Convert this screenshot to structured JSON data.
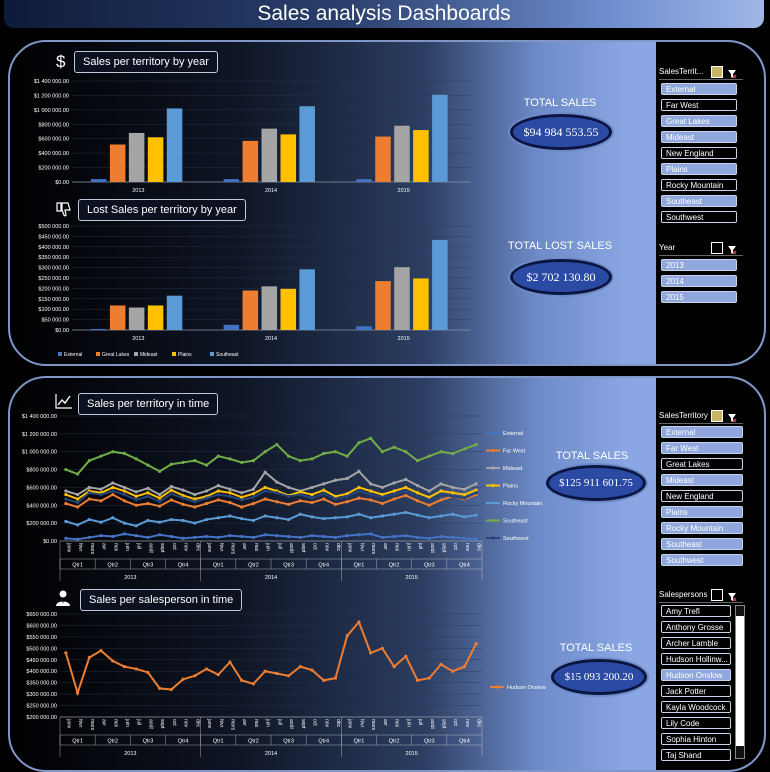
{
  "page_title": "Sales analysis Dashboards",
  "colors": {
    "External": "#4472c4",
    "Far West": "#ed7d31",
    "Great Lakes": "#ed7d31",
    "Mideast": "#a5a5a5",
    "Plains": "#ffc000",
    "Rocky Mountain": "#5b9bd5",
    "Southeast": "#5b9bd5",
    "Southeast_line": "#70ad47",
    "Southwest": "#264478",
    "Hudson Onslow": "#ed7d31"
  },
  "icons": {
    "dollar": "dollar-icon",
    "thumbs_down": "thumbs-down-icon",
    "line_chart": "line-chart-icon",
    "person": "person-icon"
  },
  "charts": {
    "sales_by_year_title": "Sales per territory by year",
    "lost_by_year_title": "Lost Sales per territory by year",
    "sales_in_time_title": "Sales per territory in time",
    "salesperson_in_time_title": "Sales per salesperson in time"
  },
  "kpis": {
    "total_sales_label": "TOTAL SALES",
    "total_sales_value": "$94 984 553.55",
    "total_lost_label": "TOTAL LOST SALES",
    "total_lost_value": "$2 702 130.80",
    "total_sales2_label": "TOTAL SALES",
    "total_sales2_value": "$125 911 601.75",
    "total_sales3_label": "TOTAL SALES",
    "total_sales3_value": "$15 093 200.20"
  },
  "slicers": {
    "territory1": {
      "title": "SalesTerrit...",
      "items": [
        {
          "label": "External",
          "selected": true
        },
        {
          "label": "Far West",
          "selected": false
        },
        {
          "label": "Great Lakes",
          "selected": true
        },
        {
          "label": "Mideast",
          "selected": true
        },
        {
          "label": "New England",
          "selected": false
        },
        {
          "label": "Plains",
          "selected": true
        },
        {
          "label": "Rocky Mountain",
          "selected": false
        },
        {
          "label": "Southeast",
          "selected": true
        },
        {
          "label": "Southwest",
          "selected": false
        }
      ]
    },
    "year": {
      "title": "Year",
      "items": [
        {
          "label": "2013",
          "selected": true
        },
        {
          "label": "2014",
          "selected": true
        },
        {
          "label": "2015",
          "selected": true
        }
      ]
    },
    "territory2": {
      "title": "SalesTerritory",
      "items": [
        {
          "label": "External",
          "selected": true
        },
        {
          "label": "Far West",
          "selected": true
        },
        {
          "label": "Great Lakes",
          "selected": false
        },
        {
          "label": "Mideast",
          "selected": true
        },
        {
          "label": "New England",
          "selected": false
        },
        {
          "label": "Plains",
          "selected": true
        },
        {
          "label": "Rocky Mountain",
          "selected": true
        },
        {
          "label": "Southeast",
          "selected": true
        },
        {
          "label": "Southwest",
          "selected": true
        }
      ]
    },
    "salespersons": {
      "title": "Salespersons",
      "items": [
        {
          "label": "Amy Trefl",
          "selected": false
        },
        {
          "label": "Anthony Grosse",
          "selected": false
        },
        {
          "label": "Archer Lamble",
          "selected": false
        },
        {
          "label": "Hudson Hollinw...",
          "selected": false
        },
        {
          "label": "Hudson Onslow",
          "selected": true
        },
        {
          "label": "Jack Potter",
          "selected": false
        },
        {
          "label": "Kayla Woodcock",
          "selected": false
        },
        {
          "label": "Lily Code",
          "selected": false
        },
        {
          "label": "Sophia Hinton",
          "selected": false
        },
        {
          "label": "Taj Shand",
          "selected": false
        }
      ]
    }
  },
  "chart_data": [
    {
      "type": "bar",
      "title": "Sales per territory by year",
      "categories": [
        "2013",
        "2014",
        "2015"
      ],
      "ylim": [
        0,
        1400000
      ],
      "yticks": [
        "$0.00",
        "$200 000.00",
        "$400 000.00",
        "$600 000.00",
        "$800 000.00",
        "$1 000 000.00",
        "$1 200 000.00",
        "$1 400 000.00"
      ],
      "series": [
        {
          "name": "External",
          "values": [
            40000,
            40000,
            40000
          ]
        },
        {
          "name": "Great Lakes",
          "values": [
            520000,
            570000,
            630000
          ]
        },
        {
          "name": "Mideast",
          "values": [
            680000,
            740000,
            780000
          ]
        },
        {
          "name": "Plains",
          "values": [
            620000,
            660000,
            720000
          ]
        },
        {
          "name": "Southeast",
          "values": [
            1020000,
            1050000,
            1210000
          ]
        }
      ]
    },
    {
      "type": "bar",
      "title": "Lost Sales per territory by year",
      "categories": [
        "2013",
        "2014",
        "2015"
      ],
      "ylim": [
        0,
        500000
      ],
      "yticks": [
        "$0.00",
        "$50 000.00",
        "$100 000.00",
        "$150 000.00",
        "$200 000.00",
        "$250 000.00",
        "$300 000.00",
        "$350 000.00",
        "$400 000.00",
        "$450 000.00",
        "$500 000.00"
      ],
      "legend": [
        "External",
        "Great Lakes",
        "Mideast",
        "Plains",
        "Southeast"
      ],
      "series": [
        {
          "name": "External",
          "values": [
            5000,
            25000,
            18000
          ]
        },
        {
          "name": "Great Lakes",
          "values": [
            118000,
            190000,
            235000
          ]
        },
        {
          "name": "Mideast",
          "values": [
            108000,
            210000,
            302000
          ]
        },
        {
          "name": "Plains",
          "values": [
            118000,
            198000,
            248000
          ]
        },
        {
          "name": "Southeast",
          "values": [
            165000,
            292000,
            433000
          ]
        }
      ]
    },
    {
      "type": "line",
      "title": "Sales per territory in time",
      "ylim": [
        0,
        1400000
      ],
      "yticks": [
        "$0.00",
        "$200 000.00",
        "$400 000.00",
        "$600 000.00",
        "$800 000.00",
        "$1 000 000.00",
        "$1 200 000.00",
        "$1 400 000.00"
      ],
      "months": [
        "janv",
        "févr",
        "mars",
        "avr",
        "mai",
        "juin",
        "juil",
        "août",
        "sept",
        "oct",
        "nov",
        "déc"
      ],
      "quarters": [
        "Qtr1",
        "Qtr2",
        "Qtr3",
        "Qtr4"
      ],
      "years": [
        "2013",
        "2014",
        "2015"
      ],
      "series": [
        {
          "name": "External",
          "values": [
            30000,
            20000,
            40000,
            60000,
            50000,
            80000,
            60000,
            40000,
            70000,
            50000,
            30000,
            40000,
            50000,
            40000,
            60000,
            50000,
            40000,
            70000,
            60000,
            50000,
            40000,
            60000,
            50000,
            40000,
            60000,
            70000,
            80000,
            40000,
            50000,
            60000,
            40000,
            30000,
            50000,
            40000,
            30000,
            20000
          ]
        },
        {
          "name": "Far West",
          "values": [
            420000,
            380000,
            470000,
            450000,
            520000,
            450000,
            400000,
            420000,
            390000,
            460000,
            410000,
            380000,
            420000,
            460000,
            430000,
            380000,
            420000,
            470000,
            440000,
            410000,
            450000,
            430000,
            470000,
            410000,
            440000,
            480000,
            460000,
            420000,
            470000,
            510000,
            450000,
            400000,
            460000,
            500000,
            470000,
            520000
          ]
        },
        {
          "name": "Mideast",
          "values": [
            560000,
            520000,
            600000,
            580000,
            650000,
            600000,
            550000,
            590000,
            520000,
            610000,
            570000,
            520000,
            560000,
            620000,
            580000,
            540000,
            580000,
            770000,
            660000,
            600000,
            560000,
            600000,
            640000,
            680000,
            700000,
            780000,
            640000,
            600000,
            650000,
            690000,
            620000,
            560000,
            640000,
            600000,
            580000,
            640000
          ]
        },
        {
          "name": "Plains",
          "values": [
            520000,
            470000,
            560000,
            540000,
            600000,
            560000,
            500000,
            540000,
            480000,
            570000,
            510000,
            470000,
            500000,
            560000,
            540000,
            490000,
            530000,
            600000,
            560000,
            510000,
            550000,
            520000,
            570000,
            500000,
            530000,
            600000,
            560000,
            520000,
            560000,
            600000,
            540000,
            490000,
            560000,
            540000,
            520000,
            570000
          ]
        },
        {
          "name": "Rocky Mountain",
          "values": [
            220000,
            180000,
            240000,
            210000,
            260000,
            200000,
            170000,
            230000,
            210000,
            240000,
            230000,
            200000,
            240000,
            260000,
            280000,
            250000,
            230000,
            280000,
            260000,
            240000,
            300000,
            270000,
            250000,
            260000,
            270000,
            300000,
            260000,
            280000,
            300000,
            320000,
            290000,
            260000,
            280000,
            300000,
            270000,
            290000
          ]
        },
        {
          "name": "Southeast",
          "values": [
            800000,
            750000,
            900000,
            950000,
            1000000,
            980000,
            920000,
            850000,
            780000,
            860000,
            880000,
            900000,
            850000,
            950000,
            920000,
            880000,
            900000,
            1000000,
            1080000,
            950000,
            900000,
            920000,
            980000,
            1000000,
            950000,
            1100000,
            1150000,
            1000000,
            1050000,
            1000000,
            900000,
            950000,
            1000000,
            980000,
            1030000,
            1080000
          ]
        },
        {
          "name": "Southwest",
          "values": [
            470000,
            430000,
            540000,
            520000,
            560000,
            520000,
            460000,
            500000,
            440000,
            530000,
            480000,
            440000,
            480000,
            520000,
            500000,
            460000,
            490000,
            560000,
            540000,
            500000,
            520000,
            480000,
            530000,
            470000,
            500000,
            560000,
            520000,
            490000,
            520000,
            560000,
            500000,
            460000,
            520000,
            500000,
            480000,
            540000
          ]
        }
      ]
    },
    {
      "type": "line",
      "title": "Sales per salesperson in time",
      "ylim": [
        200000,
        650000
      ],
      "yticks": [
        "$200 000.00",
        "$250 000.00",
        "$300 000.00",
        "$350 000.00",
        "$400 000.00",
        "$450 000.00",
        "$500 000.00",
        "$550 000.00",
        "$600 000.00",
        "$650 000.00"
      ],
      "months": [
        "janv",
        "févr",
        "mars",
        "avr",
        "mai",
        "juin",
        "juil",
        "août",
        "sept",
        "oct",
        "nov",
        "déc"
      ],
      "quarters": [
        "Qtr1",
        "Qtr2",
        "Qtr3",
        "Qtr4"
      ],
      "years": [
        "2013",
        "2014",
        "2015"
      ],
      "series": [
        {
          "name": "Hudson Onslow",
          "values": [
            480000,
            305000,
            460000,
            490000,
            445000,
            420000,
            410000,
            395000,
            325000,
            320000,
            365000,
            380000,
            410000,
            385000,
            440000,
            360000,
            345000,
            400000,
            390000,
            380000,
            420000,
            405000,
            360000,
            370000,
            555000,
            615000,
            480000,
            500000,
            420000,
            465000,
            360000,
            370000,
            430000,
            400000,
            420000,
            520000
          ]
        }
      ]
    }
  ]
}
